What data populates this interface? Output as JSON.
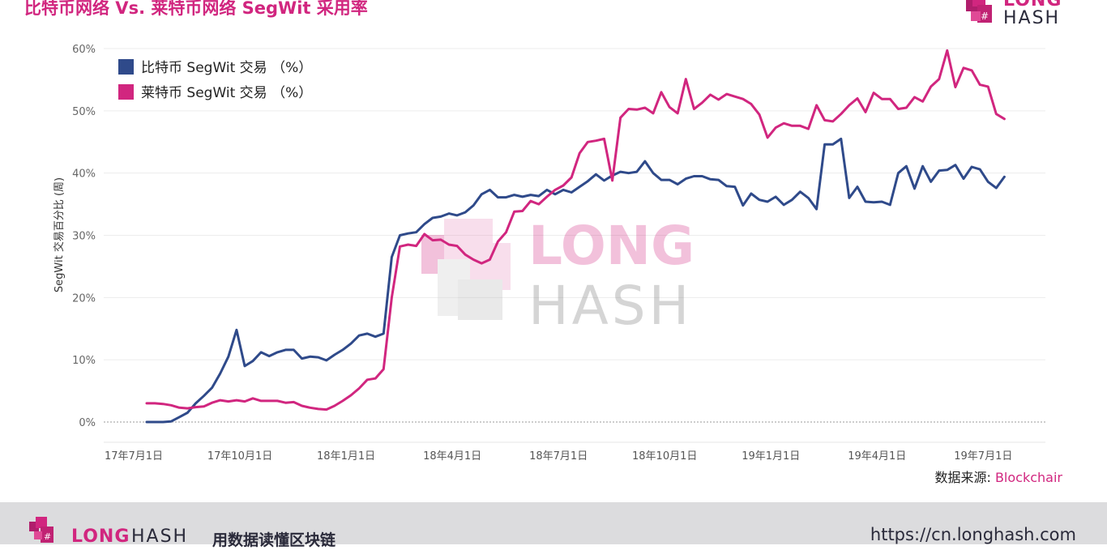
{
  "header": {
    "title": "比特币网络 Vs. 莱特币网络 SegWit 采用率",
    "logo_word1": "LONG",
    "logo_word2": "HASH"
  },
  "watermark": {
    "word1": "LONG",
    "word2": "HASH"
  },
  "chart_data": {
    "type": "line",
    "xlabel": "",
    "ylabel": "SegWit 交易百分比 (周)",
    "ylim": [
      0,
      60
    ],
    "yticks": [
      "0%",
      "10%",
      "20%",
      "30%",
      "40%",
      "50%",
      "60%"
    ],
    "ytick_values": [
      0,
      10,
      20,
      30,
      40,
      50,
      60
    ],
    "xticks": [
      "17年7月1日",
      "17年10月1日",
      "18年1月1日",
      "18年4月1日",
      "18年7月1日",
      "18年10月1日",
      "19年1月1日",
      "19年4月1日",
      "19年7月1日"
    ],
    "xtick_weeks": [
      0,
      13,
      26,
      39,
      52,
      65,
      78,
      91,
      104
    ],
    "x_unit": "week",
    "grid": true,
    "legend_position": "top-left",
    "series": [
      {
        "name": "比特币 SegWit 交易 （%）",
        "color": "#2f4a8a",
        "values": [
          0,
          0,
          0,
          0.1,
          0.8,
          1.5,
          3.0,
          4.2,
          5.5,
          7.8,
          10.5,
          14.8,
          9.0,
          9.8,
          11.2,
          10.6,
          11.2,
          11.6,
          11.6,
          10.2,
          10.5,
          10.4,
          9.9,
          10.8,
          11.6,
          12.6,
          13.9,
          14.2,
          13.7,
          14.2,
          26.5,
          30.0,
          30.3,
          30.5,
          31.8,
          32.8,
          33.0,
          33.5,
          33.2,
          33.7,
          34.8,
          36.6,
          37.3,
          36.1,
          36.1,
          36.5,
          36.2,
          36.5,
          36.3,
          37.3,
          36.6,
          37.3,
          36.9,
          37.8,
          38.7,
          39.8,
          38.8,
          39.6,
          40.2,
          40.0,
          40.2,
          41.9,
          40.0,
          38.9,
          38.9,
          38.2,
          39.1,
          39.5,
          39.5,
          39.0,
          38.9,
          37.9,
          37.8,
          34.8,
          36.7,
          35.7,
          35.4,
          36.2,
          34.9,
          35.7,
          37.0,
          36.0,
          34.2,
          44.6,
          44.6,
          45.5,
          36.0,
          37.8,
          35.4,
          35.3,
          35.4,
          34.9,
          40.0,
          41.1,
          37.5,
          41.1,
          38.6,
          40.4,
          40.5,
          41.3,
          39.1,
          41.0,
          40.6,
          38.6,
          37.6,
          39.4
        ]
      },
      {
        "name": "莱特币 SegWit 交易 （%）",
        "color": "#d1267f",
        "values": [
          3.0,
          3.0,
          2.9,
          2.7,
          2.3,
          2.2,
          2.4,
          2.5,
          3.1,
          3.5,
          3.3,
          3.5,
          3.3,
          3.8,
          3.4,
          3.4,
          3.4,
          3.1,
          3.2,
          2.6,
          2.3,
          2.1,
          2.0,
          2.6,
          3.4,
          4.3,
          5.4,
          6.8,
          7.0,
          8.5,
          20.0,
          28.2,
          28.5,
          28.3,
          30.2,
          29.2,
          29.3,
          28.5,
          28.3,
          26.9,
          26.1,
          25.5,
          26.1,
          29.0,
          30.5,
          33.8,
          33.9,
          35.5,
          35.0,
          36.2,
          37.3,
          38.0,
          39.3,
          43.2,
          45.0,
          45.2,
          45.5,
          38.8,
          48.9,
          50.3,
          50.2,
          50.5,
          49.6,
          53.0,
          50.6,
          49.6,
          55.1,
          50.3,
          51.3,
          52.6,
          51.8,
          52.7,
          52.3,
          51.9,
          51.1,
          49.4,
          45.7,
          47.3,
          48.0,
          47.6,
          47.6,
          47.1,
          50.9,
          48.5,
          48.3,
          49.5,
          50.9,
          52.0,
          49.8,
          52.9,
          51.9,
          51.9,
          50.3,
          50.5,
          52.2,
          51.5,
          53.9,
          55.1,
          59.7,
          53.8,
          56.9,
          56.5,
          54.2,
          53.9,
          49.5,
          48.7
        ]
      }
    ]
  },
  "source": {
    "label": "数据来源: ",
    "name": "Blockchair"
  },
  "footer": {
    "logo_word1": "LONG",
    "logo_word2": "HASH",
    "tagline": "用数据读懂区块链",
    "url": "https://cn.longhash.com"
  }
}
